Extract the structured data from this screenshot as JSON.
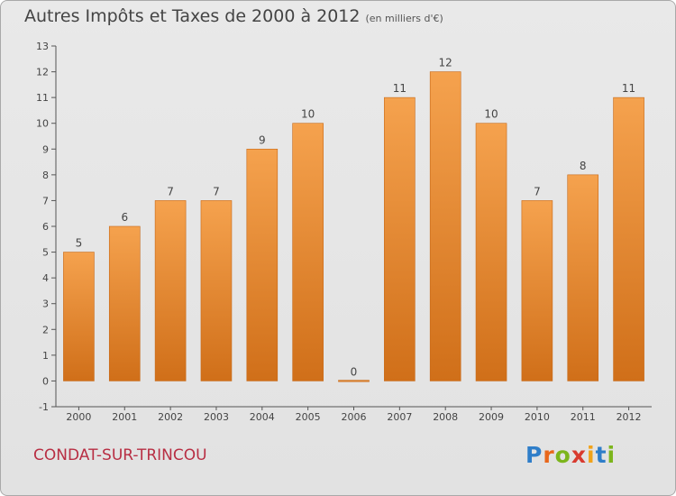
{
  "title": "Autres Impôts et Taxes de 2000 à 2012",
  "subtitle": "(en milliers d'€)",
  "commune": "CONDAT-SUR-TRINCOU",
  "logo": {
    "letters": [
      "P",
      "r",
      "o",
      "x",
      "i",
      "t",
      "i"
    ],
    "colors": [
      "#2f7ec9",
      "#e8671b",
      "#7cb51c",
      "#d83a2f",
      "#f1a31a",
      "#2f7ec9",
      "#7cb51c"
    ]
  },
  "chart_data": {
    "type": "bar",
    "categories": [
      "2000",
      "2001",
      "2002",
      "2003",
      "2004",
      "2005",
      "2006",
      "2007",
      "2008",
      "2009",
      "2010",
      "2011",
      "2012"
    ],
    "values": [
      5,
      6,
      7,
      7,
      9,
      10,
      0,
      11,
      12,
      10,
      7,
      8,
      11
    ],
    "ylim": [
      -1,
      13
    ],
    "yticks": [
      -1,
      0,
      1,
      2,
      3,
      4,
      5,
      6,
      7,
      8,
      9,
      10,
      11,
      12,
      13
    ],
    "grid": false,
    "bar_color_top": "#f5a24e",
    "bar_color_bottom": "#d06f19"
  }
}
